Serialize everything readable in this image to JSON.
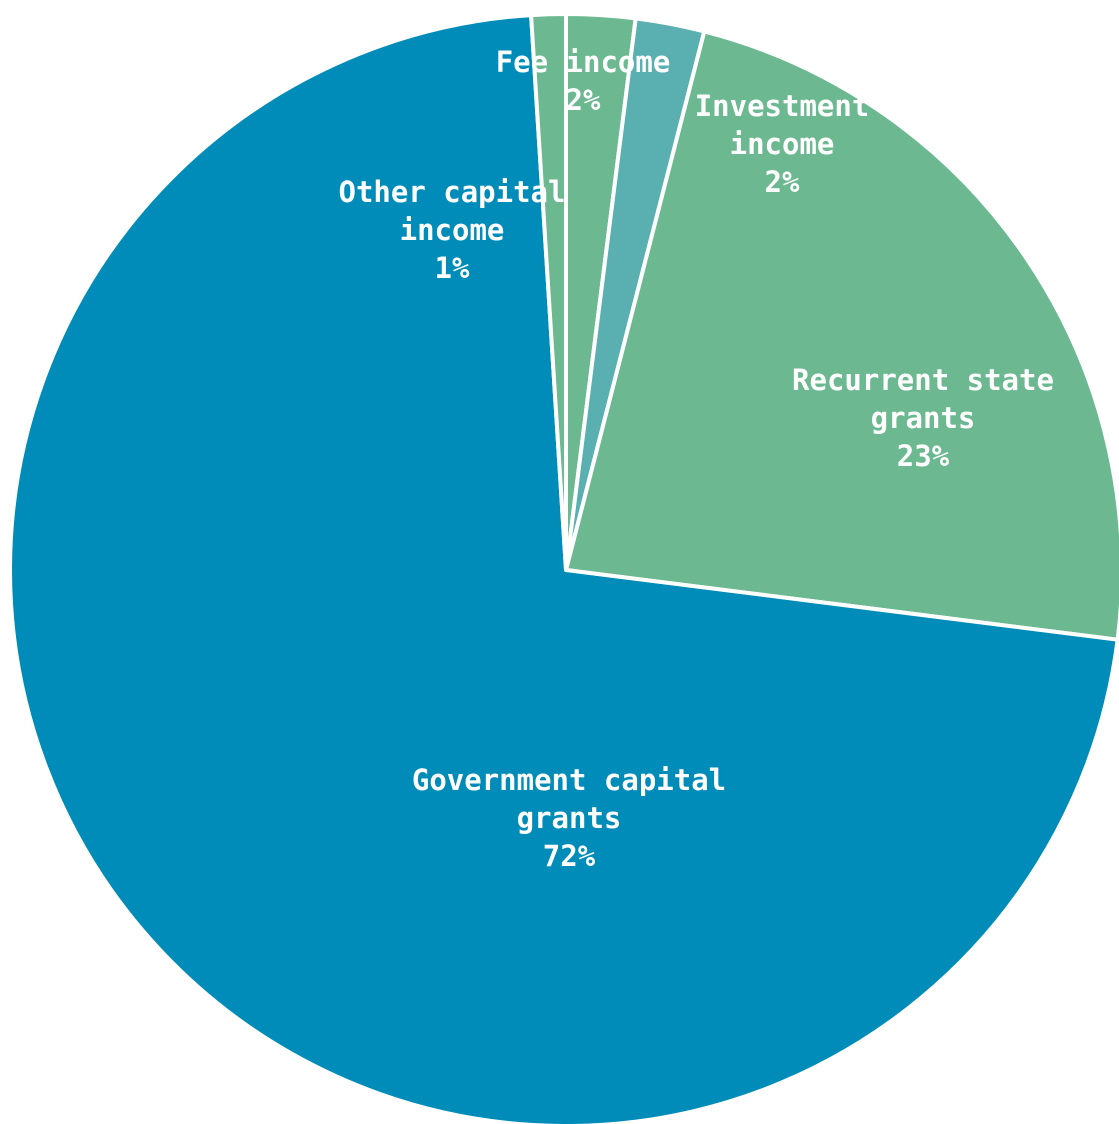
{
  "chart_data": {
    "type": "pie",
    "title": "",
    "start_angle_deg": 0,
    "direction": "clockwise",
    "slices": [
      {
        "name": "Fee income",
        "value": 2,
        "percent_label": "2%",
        "color": "#6cb891"
      },
      {
        "name": "Investment income",
        "value": 2,
        "percent_label": "2%",
        "color": "#5aafb1"
      },
      {
        "name": "Recurrent state grants",
        "value": 23,
        "percent_label": "23%",
        "color": "#6cb891"
      },
      {
        "name": "Government capital grants",
        "value": 72,
        "percent_label": "72%",
        "color": "#008cb9"
      },
      {
        "name": "Other capital income",
        "value": 1,
        "percent_label": "1%",
        "color": "#6cb891"
      }
    ],
    "labels": [
      {
        "slice": 0,
        "lines": [
          "Fee income",
          "2%"
        ]
      },
      {
        "slice": 1,
        "lines": [
          "Investment",
          "income",
          "2%"
        ]
      },
      {
        "slice": 2,
        "lines": [
          "Recurrent state",
          "grants",
          "23%"
        ]
      },
      {
        "slice": 3,
        "lines": [
          "Government capital",
          "grants",
          "72%"
        ]
      },
      {
        "slice": 4,
        "lines": [
          "Other capital",
          "income",
          "1%"
        ]
      }
    ],
    "legend": "none"
  }
}
